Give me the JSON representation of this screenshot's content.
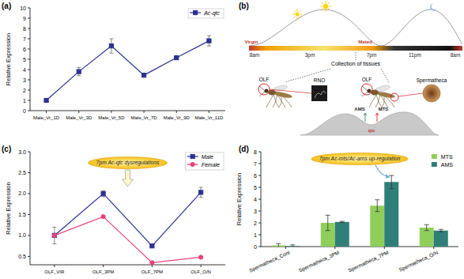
{
  "chart_data": [
    {
      "type": "line",
      "panel_label": "(a)",
      "y_label": "Relative Expression",
      "categories": [
        "Male_Vr_1D",
        "Male_Vr_3D",
        "Male_Vr_5D",
        "Male_Vr_7D",
        "Male_Vr_9D",
        "Male_Vr_11D"
      ],
      "series": [
        {
          "name": "Ac-qtc",
          "color": "#2e3192",
          "marker": "square",
          "line_style": "solid",
          "values": [
            1.0,
            3.8,
            6.3,
            3.45,
            5.15,
            6.8
          ],
          "errors": [
            0.05,
            0.4,
            0.7,
            0.1,
            0.1,
            0.5
          ]
        }
      ],
      "ylim": [
        0,
        10
      ],
      "yticks": [
        0,
        1,
        2,
        3,
        4,
        5,
        6,
        7,
        8,
        9,
        10
      ],
      "legend": "upper right",
      "grid": false
    },
    {
      "type": "line",
      "panel_label": "(c)",
      "y_label": "Relative Expression",
      "categories": [
        "OLF_VIR",
        "OLF_3PM",
        "OLF_7PM",
        "OLF_O/N"
      ],
      "series": [
        {
          "name": "Male",
          "color": "#2e3192",
          "marker": "square",
          "line_style": "solid",
          "values": [
            1.0,
            2.0,
            0.75,
            2.03
          ],
          "errors": [
            0.2,
            0.07,
            0.03,
            0.12
          ]
        },
        {
          "name": "Female",
          "color": "#e8407c",
          "marker": "circle",
          "line_style": "solid",
          "values": [
            1.0,
            1.45,
            0.35,
            0.48
          ],
          "errors": [
            0.05,
            0.02,
            0.02,
            0.02
          ]
        }
      ],
      "ylim": [
        0.3,
        3.0
      ],
      "yticks": [
        0.5,
        {
          "value": 1,
          "label": "1.0"
        },
        1.5,
        {
          "value": 2,
          "label": "2.0"
        },
        2.5,
        {
          "value": 3,
          "label": "3.0"
        }
      ],
      "legend": "upper right",
      "grid": false,
      "annotation": "7pm Ac-qtc dysregulations"
    },
    {
      "type": "bar",
      "panel_label": "(d)",
      "y_label": "Relative Expression",
      "categories": [
        "Spermatheca_Cont",
        "Spermatheca_3PM",
        "Spermatheca_7PM",
        "Spermatheca_O/N"
      ],
      "series": [
        {
          "name": "MTS",
          "color": "#8fce5a",
          "values": [
            0.1,
            2.0,
            3.45,
            1.6
          ],
          "errors": [
            0.15,
            0.65,
            0.5,
            0.25
          ]
        },
        {
          "name": "AMS",
          "color": "#2f7f78",
          "values": [
            0.05,
            2.08,
            5.45,
            1.35
          ],
          "errors": [
            0.1,
            0.05,
            0.55,
            0.1
          ]
        }
      ],
      "ylim": [
        0,
        8
      ],
      "yticks": [
        0,
        1,
        2,
        3,
        4,
        5,
        6,
        7,
        8
      ],
      "legend": "upper right",
      "grid": false,
      "annotation": "7pm Ac-mts/Ac-ams up-regulation"
    }
  ],
  "diagram": {
    "panel_label": "(b)",
    "timeline": [
      "Virgin",
      "8am",
      "3pm",
      "Mated",
      "7pm",
      "11pm",
      "8am"
    ],
    "collection": "Collection of tissues",
    "tissues": [
      "OLF",
      "RNO",
      "OLF",
      "Spermatheca"
    ],
    "genes": [
      "AMS",
      "MTS",
      "qtc"
    ]
  }
}
